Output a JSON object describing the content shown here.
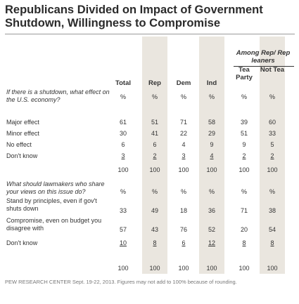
{
  "title": "Republicans Divided on Impact of Government Shutdown, Willingness to Compromise",
  "group_header": "Among Rep/ Rep leaners",
  "columns": [
    "Total",
    "Rep",
    "Dem",
    "Ind",
    "Tea Party",
    "Not Tea"
  ],
  "sections": [
    {
      "question": "If there is a shutdown, what effect on the U.S. economy?",
      "pct": [
        "%",
        "%",
        "%",
        "%",
        "%",
        "%"
      ],
      "rows": [
        {
          "label": "Major effect",
          "values": [
            "61",
            "51",
            "71",
            "58",
            "39",
            "60"
          ]
        },
        {
          "label": "Minor effect",
          "values": [
            "30",
            "41",
            "22",
            "29",
            "51",
            "33"
          ]
        },
        {
          "label": "No effect",
          "values": [
            "6",
            "6",
            "4",
            "9",
            "9",
            "5"
          ]
        },
        {
          "label": "Don't know",
          "values": [
            "3",
            "2",
            "3",
            "4",
            "2",
            "2"
          ]
        }
      ],
      "totals": [
        "100",
        "100",
        "100",
        "100",
        "100",
        "100"
      ]
    },
    {
      "question": "What should lawmakers who share your views on this issue do?",
      "pct": [
        "%",
        "%",
        "%",
        "%",
        "%",
        "%"
      ],
      "rows": [
        {
          "label": "Stand by principles, even if gov't shuts down",
          "values": [
            "33",
            "49",
            "18",
            "36",
            "71",
            "38"
          ]
        },
        {
          "label": "Compromise, even on budget you disagree with",
          "values": [
            "57",
            "43",
            "76",
            "52",
            "20",
            "54"
          ]
        },
        {
          "label": "Don't know",
          "values": [
            "10",
            "8",
            "6",
            "12",
            "8",
            "8"
          ]
        }
      ],
      "totals": [
        "100",
        "100",
        "100",
        "100",
        "100",
        "100"
      ]
    }
  ],
  "footer": "PEW RESEARCH CENTER Sept. 19-22, 2013. Figures may not add to 100% because of rounding."
}
